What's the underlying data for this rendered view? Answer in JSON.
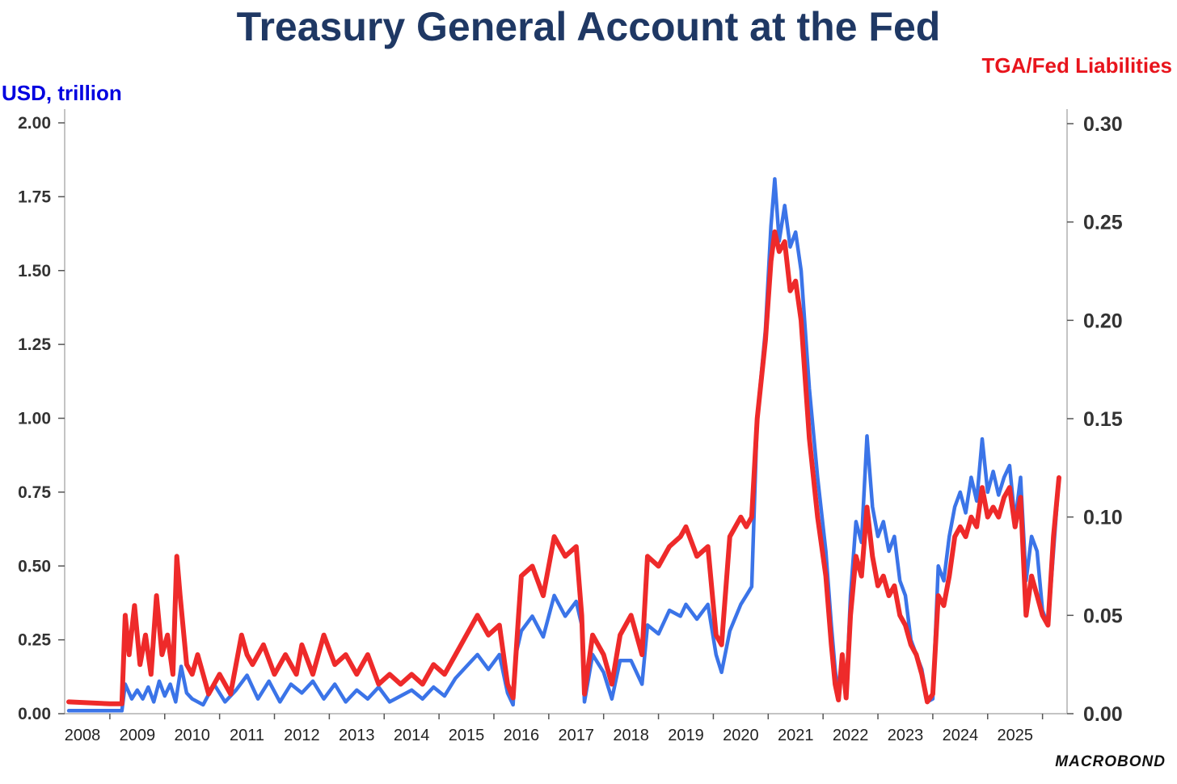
{
  "brand": "MACROBOND",
  "chart_data": {
    "type": "line",
    "title": "Treasury General Account at the Fed",
    "left_axis": {
      "label": "USD, trillion",
      "range": [
        0,
        2.0
      ],
      "ticks": [
        "0.00",
        "0.25",
        "0.50",
        "0.75",
        "1.00",
        "1.25",
        "1.50",
        "1.75",
        "2.00"
      ]
    },
    "right_axis": {
      "label": "TGA/Fed Liabilities",
      "range": [
        0,
        0.3
      ],
      "ticks": [
        "0.00",
        "0.05",
        "0.10",
        "0.15",
        "0.20",
        "0.25",
        "0.30"
      ]
    },
    "x_range": [
      2007.75,
      2025.8
    ],
    "x_ticks": [
      "2008",
      "2009",
      "2010",
      "2011",
      "2012",
      "2013",
      "2014",
      "2015",
      "2016",
      "2017",
      "2018",
      "2019",
      "2020",
      "2021",
      "2022",
      "2023",
      "2024",
      "2025"
    ],
    "series": [
      {
        "name": "TGA (USD, trillion)",
        "axis": "left",
        "color": "#3b74e8",
        "points": [
          [
            2007.75,
            0.01
          ],
          [
            2008.5,
            0.01
          ],
          [
            2008.72,
            0.01
          ],
          [
            2008.78,
            0.1
          ],
          [
            2008.9,
            0.05
          ],
          [
            2009.0,
            0.08
          ],
          [
            2009.1,
            0.05
          ],
          [
            2009.2,
            0.09
          ],
          [
            2009.3,
            0.04
          ],
          [
            2009.4,
            0.11
          ],
          [
            2009.5,
            0.06
          ],
          [
            2009.6,
            0.1
          ],
          [
            2009.7,
            0.04
          ],
          [
            2009.8,
            0.16
          ],
          [
            2009.9,
            0.07
          ],
          [
            2010.0,
            0.05
          ],
          [
            2010.2,
            0.03
          ],
          [
            2010.4,
            0.1
          ],
          [
            2010.6,
            0.04
          ],
          [
            2010.8,
            0.08
          ],
          [
            2011.0,
            0.13
          ],
          [
            2011.2,
            0.05
          ],
          [
            2011.4,
            0.11
          ],
          [
            2011.6,
            0.04
          ],
          [
            2011.8,
            0.1
          ],
          [
            2012.0,
            0.07
          ],
          [
            2012.2,
            0.11
          ],
          [
            2012.4,
            0.05
          ],
          [
            2012.6,
            0.1
          ],
          [
            2012.8,
            0.04
          ],
          [
            2013.0,
            0.08
          ],
          [
            2013.2,
            0.05
          ],
          [
            2013.4,
            0.09
          ],
          [
            2013.6,
            0.04
          ],
          [
            2013.8,
            0.06
          ],
          [
            2014.0,
            0.08
          ],
          [
            2014.2,
            0.05
          ],
          [
            2014.4,
            0.09
          ],
          [
            2014.6,
            0.06
          ],
          [
            2014.8,
            0.12
          ],
          [
            2015.0,
            0.16
          ],
          [
            2015.2,
            0.2
          ],
          [
            2015.4,
            0.15
          ],
          [
            2015.6,
            0.2
          ],
          [
            2015.75,
            0.07
          ],
          [
            2015.85,
            0.03
          ],
          [
            2015.9,
            0.2
          ],
          [
            2016.0,
            0.28
          ],
          [
            2016.2,
            0.33
          ],
          [
            2016.4,
            0.26
          ],
          [
            2016.6,
            0.4
          ],
          [
            2016.8,
            0.33
          ],
          [
            2017.0,
            0.38
          ],
          [
            2017.1,
            0.3
          ],
          [
            2017.15,
            0.04
          ],
          [
            2017.3,
            0.2
          ],
          [
            2017.5,
            0.14
          ],
          [
            2017.65,
            0.05
          ],
          [
            2017.8,
            0.18
          ],
          [
            2018.0,
            0.18
          ],
          [
            2018.2,
            0.1
          ],
          [
            2018.3,
            0.3
          ],
          [
            2018.5,
            0.27
          ],
          [
            2018.7,
            0.35
          ],
          [
            2018.9,
            0.33
          ],
          [
            2019.0,
            0.37
          ],
          [
            2019.2,
            0.32
          ],
          [
            2019.4,
            0.37
          ],
          [
            2019.55,
            0.2
          ],
          [
            2019.65,
            0.14
          ],
          [
            2019.8,
            0.28
          ],
          [
            2020.0,
            0.37
          ],
          [
            2020.1,
            0.4
          ],
          [
            2020.2,
            0.43
          ],
          [
            2020.3,
            1.0
          ],
          [
            2020.45,
            1.3
          ],
          [
            2020.55,
            1.65
          ],
          [
            2020.62,
            1.81
          ],
          [
            2020.7,
            1.6
          ],
          [
            2020.8,
            1.72
          ],
          [
            2020.9,
            1.58
          ],
          [
            2021.0,
            1.63
          ],
          [
            2021.1,
            1.5
          ],
          [
            2021.25,
            1.1
          ],
          [
            2021.4,
            0.8
          ],
          [
            2021.55,
            0.55
          ],
          [
            2021.65,
            0.3
          ],
          [
            2021.72,
            0.15
          ],
          [
            2021.78,
            0.06
          ],
          [
            2021.85,
            0.2
          ],
          [
            2021.92,
            0.06
          ],
          [
            2022.0,
            0.4
          ],
          [
            2022.1,
            0.65
          ],
          [
            2022.2,
            0.58
          ],
          [
            2022.3,
            0.94
          ],
          [
            2022.4,
            0.7
          ],
          [
            2022.5,
            0.6
          ],
          [
            2022.6,
            0.65
          ],
          [
            2022.7,
            0.55
          ],
          [
            2022.8,
            0.6
          ],
          [
            2022.9,
            0.45
          ],
          [
            2023.0,
            0.4
          ],
          [
            2023.1,
            0.25
          ],
          [
            2023.2,
            0.2
          ],
          [
            2023.3,
            0.15
          ],
          [
            2023.4,
            0.04
          ],
          [
            2023.5,
            0.05
          ],
          [
            2023.6,
            0.5
          ],
          [
            2023.7,
            0.45
          ],
          [
            2023.8,
            0.6
          ],
          [
            2023.9,
            0.7
          ],
          [
            2024.0,
            0.75
          ],
          [
            2024.1,
            0.68
          ],
          [
            2024.2,
            0.8
          ],
          [
            2024.3,
            0.72
          ],
          [
            2024.4,
            0.93
          ],
          [
            2024.5,
            0.75
          ],
          [
            2024.6,
            0.82
          ],
          [
            2024.7,
            0.74
          ],
          [
            2024.8,
            0.8
          ],
          [
            2024.9,
            0.84
          ],
          [
            2025.0,
            0.65
          ],
          [
            2025.1,
            0.8
          ],
          [
            2025.2,
            0.45
          ],
          [
            2025.3,
            0.6
          ],
          [
            2025.4,
            0.55
          ],
          [
            2025.5,
            0.35
          ],
          [
            2025.6,
            0.3
          ],
          [
            2025.7,
            0.55
          ],
          [
            2025.8,
            0.8
          ]
        ]
      },
      {
        "name": "TGA/Fed Liabilities",
        "axis": "right",
        "color": "#ee2a2a",
        "points": [
          [
            2007.75,
            0.006
          ],
          [
            2008.5,
            0.005
          ],
          [
            2008.72,
            0.005
          ],
          [
            2008.78,
            0.05
          ],
          [
            2008.85,
            0.03
          ],
          [
            2008.95,
            0.055
          ],
          [
            2009.05,
            0.025
          ],
          [
            2009.15,
            0.04
          ],
          [
            2009.25,
            0.02
          ],
          [
            2009.35,
            0.06
          ],
          [
            2009.45,
            0.03
          ],
          [
            2009.55,
            0.04
          ],
          [
            2009.65,
            0.02
          ],
          [
            2009.72,
            0.08
          ],
          [
            2009.78,
            0.06
          ],
          [
            2009.9,
            0.025
          ],
          [
            2010.0,
            0.02
          ],
          [
            2010.1,
            0.03
          ],
          [
            2010.3,
            0.01
          ],
          [
            2010.5,
            0.02
          ],
          [
            2010.7,
            0.01
          ],
          [
            2010.9,
            0.04
          ],
          [
            2011.0,
            0.03
          ],
          [
            2011.1,
            0.025
          ],
          [
            2011.3,
            0.035
          ],
          [
            2011.5,
            0.02
          ],
          [
            2011.7,
            0.03
          ],
          [
            2011.9,
            0.02
          ],
          [
            2012.0,
            0.035
          ],
          [
            2012.2,
            0.02
          ],
          [
            2012.4,
            0.04
          ],
          [
            2012.6,
            0.025
          ],
          [
            2012.8,
            0.03
          ],
          [
            2013.0,
            0.02
          ],
          [
            2013.2,
            0.03
          ],
          [
            2013.4,
            0.015
          ],
          [
            2013.6,
            0.02
          ],
          [
            2013.8,
            0.015
          ],
          [
            2014.0,
            0.02
          ],
          [
            2014.2,
            0.015
          ],
          [
            2014.4,
            0.025
          ],
          [
            2014.6,
            0.02
          ],
          [
            2014.8,
            0.03
          ],
          [
            2015.0,
            0.04
          ],
          [
            2015.2,
            0.05
          ],
          [
            2015.4,
            0.04
          ],
          [
            2015.6,
            0.045
          ],
          [
            2015.75,
            0.015
          ],
          [
            2015.85,
            0.008
          ],
          [
            2015.95,
            0.05
          ],
          [
            2016.0,
            0.07
          ],
          [
            2016.2,
            0.075
          ],
          [
            2016.4,
            0.06
          ],
          [
            2016.6,
            0.09
          ],
          [
            2016.8,
            0.08
          ],
          [
            2017.0,
            0.085
          ],
          [
            2017.1,
            0.05
          ],
          [
            2017.15,
            0.01
          ],
          [
            2017.3,
            0.04
          ],
          [
            2017.5,
            0.03
          ],
          [
            2017.65,
            0.015
          ],
          [
            2017.8,
            0.04
          ],
          [
            2018.0,
            0.05
          ],
          [
            2018.2,
            0.03
          ],
          [
            2018.3,
            0.08
          ],
          [
            2018.5,
            0.075
          ],
          [
            2018.7,
            0.085
          ],
          [
            2018.9,
            0.09
          ],
          [
            2019.0,
            0.095
          ],
          [
            2019.2,
            0.08
          ],
          [
            2019.4,
            0.085
          ],
          [
            2019.55,
            0.04
          ],
          [
            2019.65,
            0.035
          ],
          [
            2019.8,
            0.09
          ],
          [
            2020.0,
            0.1
          ],
          [
            2020.1,
            0.095
          ],
          [
            2020.2,
            0.1
          ],
          [
            2020.3,
            0.15
          ],
          [
            2020.45,
            0.19
          ],
          [
            2020.55,
            0.23
          ],
          [
            2020.62,
            0.245
          ],
          [
            2020.7,
            0.235
          ],
          [
            2020.8,
            0.24
          ],
          [
            2020.9,
            0.215
          ],
          [
            2021.0,
            0.22
          ],
          [
            2021.1,
            0.2
          ],
          [
            2021.25,
            0.14
          ],
          [
            2021.4,
            0.1
          ],
          [
            2021.55,
            0.07
          ],
          [
            2021.65,
            0.035
          ],
          [
            2021.72,
            0.015
          ],
          [
            2021.78,
            0.007
          ],
          [
            2021.85,
            0.03
          ],
          [
            2021.92,
            0.008
          ],
          [
            2022.0,
            0.05
          ],
          [
            2022.1,
            0.08
          ],
          [
            2022.2,
            0.07
          ],
          [
            2022.3,
            0.105
          ],
          [
            2022.4,
            0.08
          ],
          [
            2022.5,
            0.065
          ],
          [
            2022.6,
            0.07
          ],
          [
            2022.7,
            0.06
          ],
          [
            2022.8,
            0.065
          ],
          [
            2022.9,
            0.05
          ],
          [
            2023.0,
            0.045
          ],
          [
            2023.1,
            0.035
          ],
          [
            2023.2,
            0.03
          ],
          [
            2023.3,
            0.02
          ],
          [
            2023.4,
            0.006
          ],
          [
            2023.5,
            0.01
          ],
          [
            2023.6,
            0.06
          ],
          [
            2023.7,
            0.055
          ],
          [
            2023.8,
            0.07
          ],
          [
            2023.9,
            0.09
          ],
          [
            2024.0,
            0.095
          ],
          [
            2024.1,
            0.09
          ],
          [
            2024.2,
            0.1
          ],
          [
            2024.3,
            0.095
          ],
          [
            2024.4,
            0.115
          ],
          [
            2024.5,
            0.1
          ],
          [
            2024.6,
            0.105
          ],
          [
            2024.7,
            0.1
          ],
          [
            2024.8,
            0.11
          ],
          [
            2024.9,
            0.115
          ],
          [
            2025.0,
            0.095
          ],
          [
            2025.1,
            0.11
          ],
          [
            2025.2,
            0.05
          ],
          [
            2025.3,
            0.07
          ],
          [
            2025.4,
            0.06
          ],
          [
            2025.5,
            0.05
          ],
          [
            2025.6,
            0.045
          ],
          [
            2025.7,
            0.09
          ],
          [
            2025.8,
            0.12
          ]
        ]
      }
    ]
  }
}
